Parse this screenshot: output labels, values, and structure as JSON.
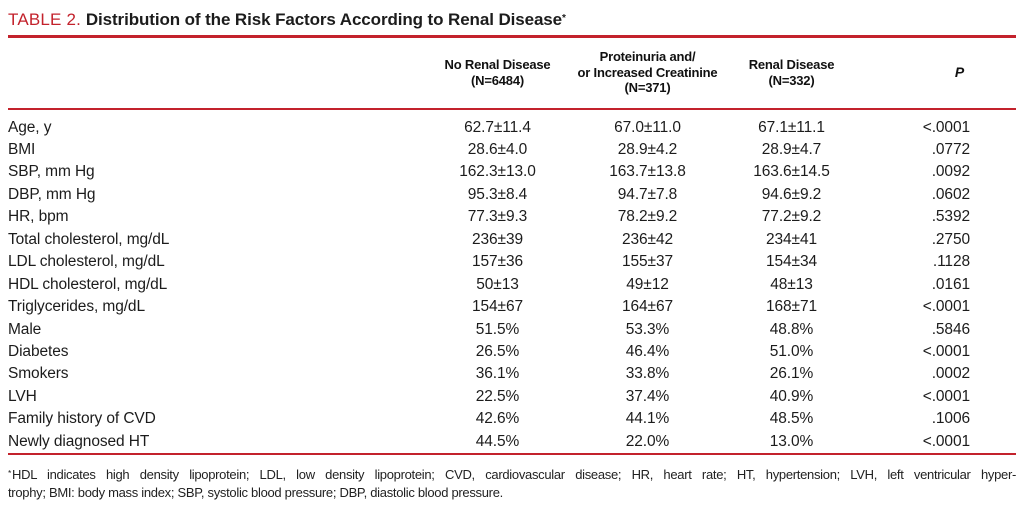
{
  "accent": {
    "red": "#c3222c",
    "text": "#1c1c1c"
  },
  "title": {
    "label": "TABLE 2.",
    "text": "Distribution of the Risk Factors According to Renal Disease",
    "footnote_marker": "*"
  },
  "table": {
    "columns": [
      {
        "id": "no_renal",
        "lines": [
          "No Renal Disease",
          "(N=6484)"
        ]
      },
      {
        "id": "proteinuria",
        "lines": [
          "Proteinuria and/",
          "or Increased Creatinine",
          "(N=371)"
        ]
      },
      {
        "id": "renal",
        "lines": [
          "Renal Disease",
          "(N=332)"
        ]
      },
      {
        "id": "p",
        "lines": [
          "P"
        ]
      }
    ],
    "rows": [
      {
        "label": "Age, y",
        "no_renal": "62.7±11.4",
        "proteinuria": "67.0±11.0",
        "renal": "67.1±11.1",
        "p": "<.0001"
      },
      {
        "label": "BMI",
        "no_renal": "28.6±4.0",
        "proteinuria": "28.9±4.2",
        "renal": "28.9±4.7",
        "p": ".0772"
      },
      {
        "label": "SBP, mm Hg",
        "no_renal": "162.3±13.0",
        "proteinuria": "163.7±13.8",
        "renal": "163.6±14.5",
        "p": ".0092"
      },
      {
        "label": "DBP, mm Hg",
        "no_renal": "95.3±8.4",
        "proteinuria": "94.7±7.8",
        "renal": "94.6±9.2",
        "p": ".0602"
      },
      {
        "label": "HR, bpm",
        "no_renal": "77.3±9.3",
        "proteinuria": "78.2±9.2",
        "renal": "77.2±9.2",
        "p": ".5392"
      },
      {
        "label": "Total cholesterol, mg/dL",
        "no_renal": "236±39",
        "proteinuria": "236±42",
        "renal": "234±41",
        "p": ".2750"
      },
      {
        "label": "LDL cholesterol, mg/dL",
        "no_renal": "157±36",
        "proteinuria": "155±37",
        "renal": "154±34",
        "p": ".1128"
      },
      {
        "label": "HDL cholesterol, mg/dL",
        "no_renal": "50±13",
        "proteinuria": "49±12",
        "renal": "48±13",
        "p": ".0161"
      },
      {
        "label": "Triglycerides, mg/dL",
        "no_renal": "154±67",
        "proteinuria": "164±67",
        "renal": "168±71",
        "p": "<.0001"
      },
      {
        "label": "Male",
        "no_renal": "51.5%",
        "proteinuria": "53.3%",
        "renal": "48.8%",
        "p": ".5846"
      },
      {
        "label": "Diabetes",
        "no_renal": "26.5%",
        "proteinuria": "46.4%",
        "renal": "51.0%",
        "p": "<.0001"
      },
      {
        "label": "Smokers",
        "no_renal": "36.1%",
        "proteinuria": "33.8%",
        "renal": "26.1%",
        "p": ".0002"
      },
      {
        "label": "LVH",
        "no_renal": "22.5%",
        "proteinuria": "37.4%",
        "renal": "40.9%",
        "p": "<.0001"
      },
      {
        "label": "Family history of CVD",
        "no_renal": "42.6%",
        "proteinuria": "44.1%",
        "renal": "48.5%",
        "p": ".1006"
      },
      {
        "label": "Newly diagnosed HT",
        "no_renal": "44.5%",
        "proteinuria": "22.0%",
        "renal": "13.0%",
        "p": "<.0001"
      }
    ]
  },
  "footnote": {
    "marker": "*",
    "lines": [
      "HDL indicates high density lipoprotein; LDL, low density lipoprotein; CVD, cardiovascular disease; HR, heart rate; HT, hypertension; LVH, left ventricular hyper-",
      "trophy; BMI: body mass index; SBP, systolic blood pressure; DBP, diastolic blood pressure."
    ]
  }
}
